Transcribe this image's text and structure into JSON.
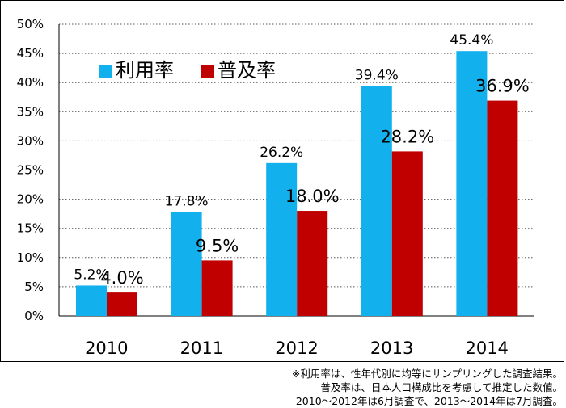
{
  "chart_data": {
    "type": "bar",
    "categories": [
      "2010",
      "2011",
      "2012",
      "2013",
      "2014"
    ],
    "series": [
      {
        "name": "利用率",
        "values": [
          5.2,
          17.8,
          26.2,
          39.4,
          45.4
        ],
        "labels": [
          "5.2%",
          "17.8%",
          "26.2%",
          "39.4%",
          "45.4%"
        ],
        "color": "#12B0EC"
      },
      {
        "name": "普及率",
        "values": [
          4.0,
          9.5,
          18.0,
          28.2,
          36.9
        ],
        "labels": [
          "4.0%",
          "9.5%",
          "18.0%",
          "28.2%",
          "36.9%"
        ],
        "color": "#C00000"
      }
    ],
    "yticks": [
      "0%",
      "5%",
      "10%",
      "15%",
      "20%",
      "25%",
      "30%",
      "35%",
      "40%",
      "45%",
      "50%"
    ],
    "ylim": [
      0,
      50
    ],
    "grid": "dotted horizontal",
    "legend": "top-left"
  },
  "footnote": [
    "※利用率は、性年代別に均等にサンプリングした調査結果。",
    "普及率は、日本人口構成比を考慮して推定した数値。",
    "2010～2012年は6月調査で、2013～2014年は7月調査。"
  ]
}
